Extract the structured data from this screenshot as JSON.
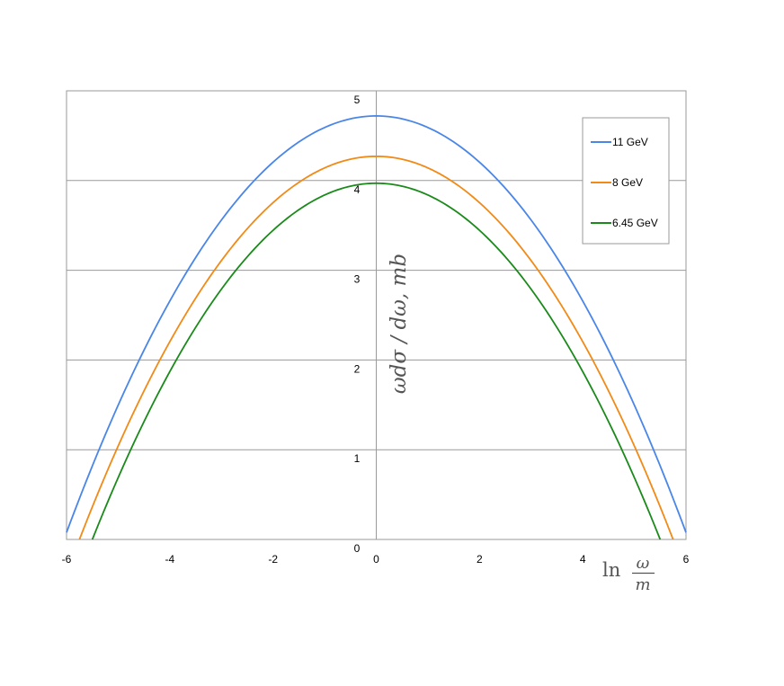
{
  "chart_data": {
    "type": "line",
    "title": "",
    "xlabel": {
      "prefix": "ln",
      "numerator": "ω",
      "denominator": "m"
    },
    "ylabel": "ωdσ / dω, mb",
    "xlim": [
      -6,
      6
    ],
    "ylim": [
      0,
      5
    ],
    "x_ticks": [
      "-6",
      "-4",
      "-2",
      "0",
      "2",
      "4",
      "6"
    ],
    "y_ticks": [
      "0",
      "1",
      "2",
      "3",
      "4",
      "5"
    ],
    "grid": {
      "horizontal": true,
      "vertical": false
    },
    "legend_position": "top-right",
    "series": [
      {
        "name": "11 GeV",
        "color": "#4a86e8",
        "peak": 4.72,
        "x_intercept": 6.05
      },
      {
        "name": "8 GeV",
        "color": "#f28a17",
        "peak": 4.27,
        "x_intercept": 5.75
      },
      {
        "name": "6.45 GeV",
        "color": "#1a8a1a",
        "peak": 3.97,
        "x_intercept": 5.5
      }
    ]
  }
}
